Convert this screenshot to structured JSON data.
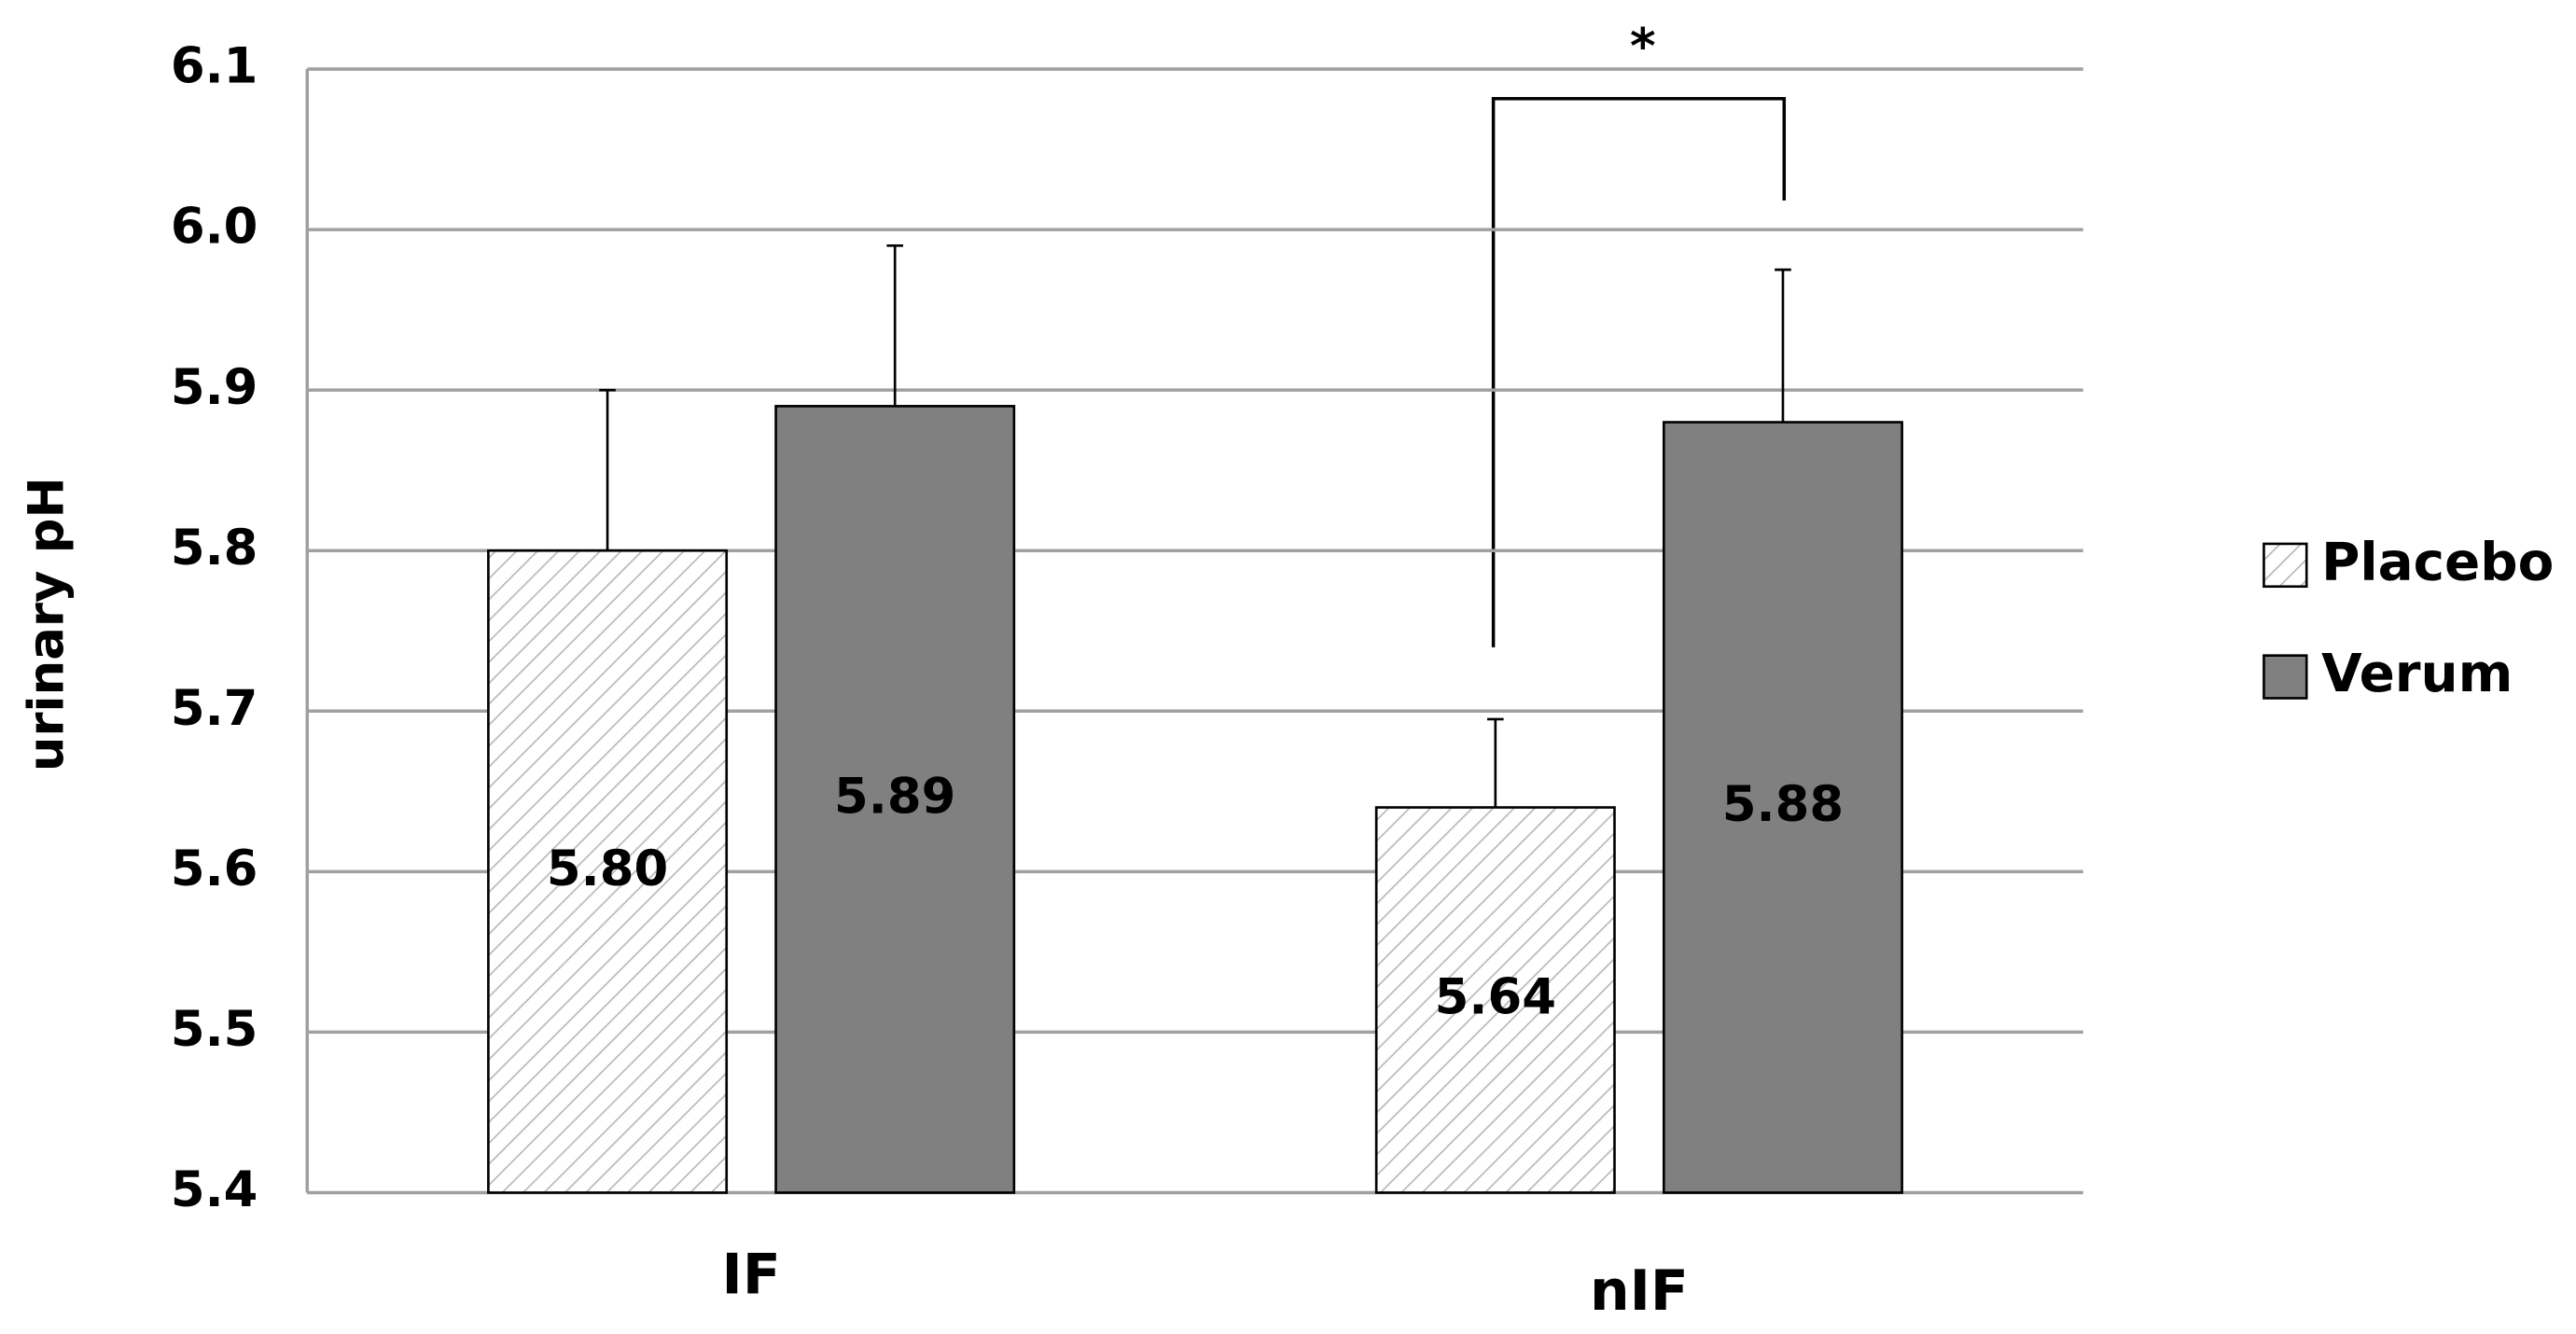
{
  "chart_data": {
    "type": "bar",
    "y_label": "urinary pH",
    "categories": [
      "IF",
      "nIF"
    ],
    "series": [
      {
        "name": "Placebo",
        "color": "#ffffff",
        "hatch": true,
        "values": [
          5.8,
          5.64
        ],
        "value_labels": [
          "5.80",
          "5.64"
        ],
        "errors": [
          0.1,
          0.055
        ]
      },
      {
        "name": "Verum",
        "color": "#808080",
        "hatch": false,
        "values": [
          5.89,
          5.88
        ],
        "value_labels": [
          "5.89",
          "5.88"
        ],
        "errors": [
          0.1,
          0.095
        ]
      }
    ],
    "ylim": [
      5.4,
      6.1
    ],
    "yticks": [
      5.4,
      5.5,
      5.6,
      5.7,
      5.8,
      5.9,
      {
        "value": 6.0,
        "label": "6.0"
      },
      6.1
    ],
    "grid": true,
    "legend": "right",
    "annotation": "*"
  }
}
